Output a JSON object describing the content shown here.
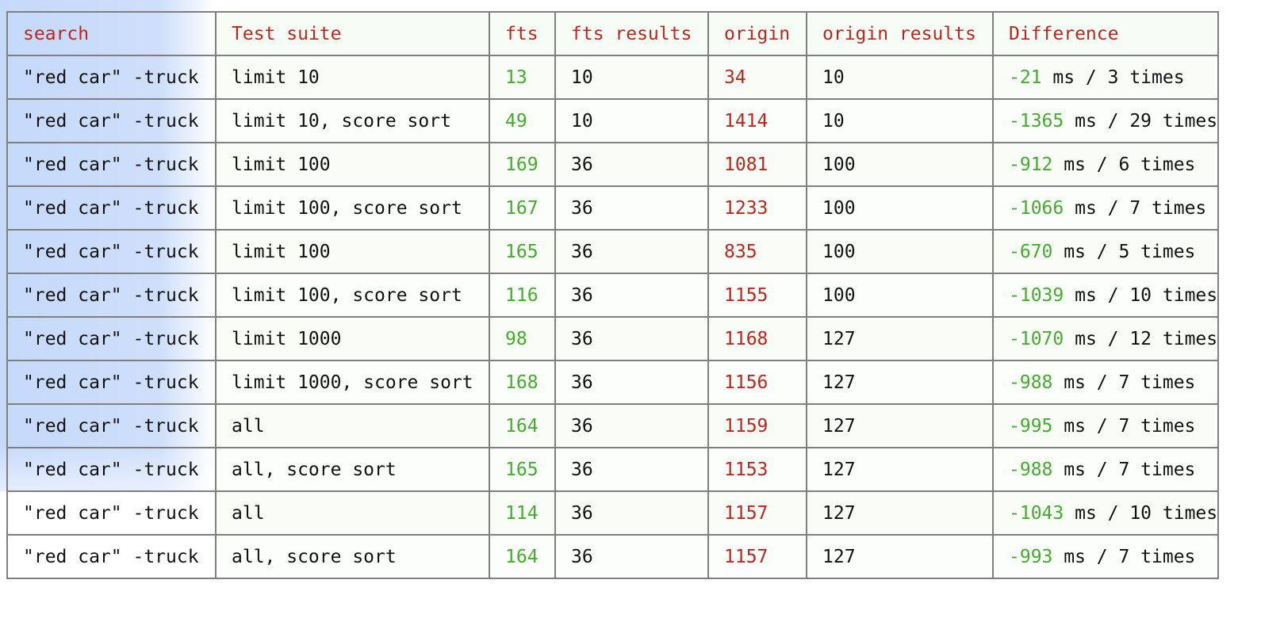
{
  "colors": {
    "header_text": "#c0251d",
    "fts_value": "#43ad2c",
    "origin_value": "#c0251d",
    "difference_value": "#43ad2c",
    "grid_border": "#7f7f7f",
    "left_panel_blue": "#c5d9fb"
  },
  "table": {
    "headers": [
      "search",
      "Test suite",
      "fts",
      "fts results",
      "origin",
      "origin results",
      "Difference"
    ],
    "rows": [
      {
        "search": "\"red car\" -truck",
        "suite": "limit 10",
        "fts": "13",
        "fts_results": "10",
        "origin": "34",
        "origin_results": "10",
        "diff_ms": "-21",
        "diff_text": " ms / 3 times"
      },
      {
        "search": "\"red car\" -truck",
        "suite": "limit 10, score sort",
        "fts": "49",
        "fts_results": "10",
        "origin": "1414",
        "origin_results": "10",
        "diff_ms": "-1365",
        "diff_text": " ms / 29 times"
      },
      {
        "search": "\"red car\" -truck",
        "suite": "limit 100",
        "fts": "169",
        "fts_results": "36",
        "origin": "1081",
        "origin_results": "100",
        "diff_ms": "-912",
        "diff_text": " ms / 6 times"
      },
      {
        "search": "\"red car\" -truck",
        "suite": "limit 100, score sort",
        "fts": "167",
        "fts_results": "36",
        "origin": "1233",
        "origin_results": "100",
        "diff_ms": "-1066",
        "diff_text": " ms / 7 times"
      },
      {
        "search": "\"red car\" -truck",
        "suite": "limit 100",
        "fts": "165",
        "fts_results": "36",
        "origin": "835",
        "origin_results": "100",
        "diff_ms": "-670",
        "diff_text": " ms / 5 times"
      },
      {
        "search": "\"red car\" -truck",
        "suite": "limit 100, score sort",
        "fts": "116",
        "fts_results": "36",
        "origin": "1155",
        "origin_results": "100",
        "diff_ms": "-1039",
        "diff_text": " ms / 10 times"
      },
      {
        "search": "\"red car\" -truck",
        "suite": "limit 1000",
        "fts": "98",
        "fts_results": "36",
        "origin": "1168",
        "origin_results": "127",
        "diff_ms": "-1070",
        "diff_text": " ms / 12 times"
      },
      {
        "search": "\"red car\" -truck",
        "suite": "limit 1000, score sort",
        "fts": "168",
        "fts_results": "36",
        "origin": "1156",
        "origin_results": "127",
        "diff_ms": "-988",
        "diff_text": " ms / 7 times"
      },
      {
        "search": "\"red car\" -truck",
        "suite": "all",
        "fts": "164",
        "fts_results": "36",
        "origin": "1159",
        "origin_results": "127",
        "diff_ms": "-995",
        "diff_text": " ms / 7 times"
      },
      {
        "search": "\"red car\" -truck",
        "suite": "all, score sort",
        "fts": "165",
        "fts_results": "36",
        "origin": "1153",
        "origin_results": "127",
        "diff_ms": "-988",
        "diff_text": " ms / 7 times"
      },
      {
        "search": "\"red car\" -truck",
        "suite": "all",
        "fts": "114",
        "fts_results": "36",
        "origin": "1157",
        "origin_results": "127",
        "diff_ms": "-1043",
        "diff_text": " ms / 10 times"
      },
      {
        "search": "\"red car\" -truck",
        "suite": "all, score sort",
        "fts": "164",
        "fts_results": "36",
        "origin": "1157",
        "origin_results": "127",
        "diff_ms": "-993",
        "diff_text": " ms / 7 times"
      }
    ]
  }
}
